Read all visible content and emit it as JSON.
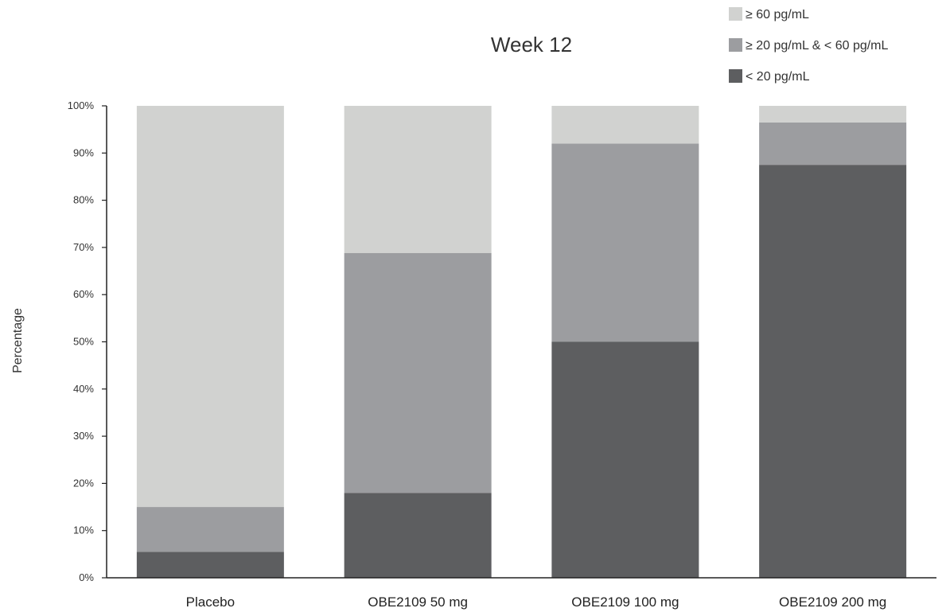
{
  "chart_data": {
    "type": "bar",
    "stacked": true,
    "title": "Week 12",
    "ylabel": "Percentage",
    "xlabel": "",
    "ylim": [
      0,
      100
    ],
    "yticks": [
      "0%",
      "10%",
      "20%",
      "30%",
      "40%",
      "50%",
      "60%",
      "70%",
      "80%",
      "90%",
      "100%"
    ],
    "categories": [
      "Placebo",
      "OBE2109 50 mg",
      "OBE2109 100 mg",
      "OBE2109 200 mg"
    ],
    "series": [
      {
        "name": "< 20 pg/mL",
        "color": "#5d5e60",
        "values": [
          5.5,
          18,
          50,
          87.5
        ]
      },
      {
        "name": "≥ 20 pg/mL & < 60 pg/mL",
        "color": "#9c9da0",
        "values": [
          9.5,
          50.8,
          42,
          9
        ]
      },
      {
        "name": "≥ 60 pg/mL",
        "color": "#d1d2d0",
        "values": [
          85,
          31.2,
          8,
          3.5
        ]
      }
    ],
    "legend": {
      "position": "top-right",
      "order": [
        "≥ 60 pg/mL",
        "≥ 20 pg/mL & < 60 pg/mL",
        "< 20 pg/mL"
      ]
    },
    "grid": false
  }
}
